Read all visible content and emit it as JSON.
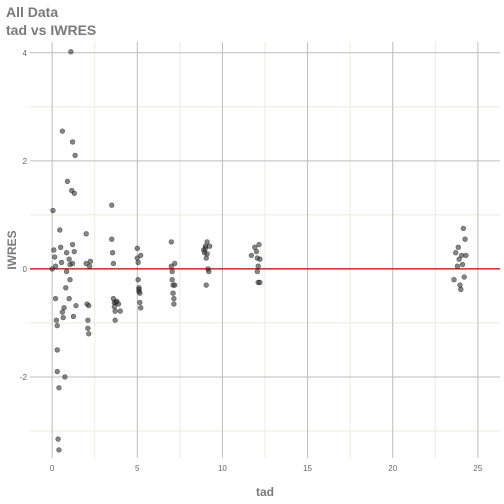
{
  "chart_data": {
    "type": "scatter",
    "title": "All Data",
    "subtitle": "tad vs IWRES",
    "xlabel": "tad",
    "ylabel": "IWRES",
    "xlim": [
      -1.3,
      26.3
    ],
    "ylim": [
      -3.5,
      4.2
    ],
    "x_ticks": [
      0,
      5,
      10,
      15,
      20,
      25
    ],
    "x_tick_labels": [
      "0",
      "5",
      "10",
      "15",
      "20",
      "25"
    ],
    "y_ticks": [
      -2,
      0,
      2,
      4
    ],
    "y_tick_labels": [
      "-2",
      "0",
      "2",
      "4"
    ],
    "x_minor_grid": [
      2.5,
      7.5,
      12.5,
      17.5,
      22.5
    ],
    "y_minor_grid": [
      -3,
      -1,
      1,
      3
    ],
    "grid": true,
    "reference_line": {
      "y": 0,
      "color": "#cc0000"
    },
    "colors": {
      "point": "#333333",
      "major_grid": "#bdbdbd",
      "minor_grid": "#ececdf",
      "text": "#7a7a7a"
    },
    "points": [
      {
        "x": 0.0,
        "y": 0.0
      },
      {
        "x": 0.05,
        "y": 1.08
      },
      {
        "x": 0.1,
        "y": 0.35
      },
      {
        "x": 0.15,
        "y": 0.22
      },
      {
        "x": 0.2,
        "y": 0.05
      },
      {
        "x": 0.2,
        "y": -0.55
      },
      {
        "x": 0.25,
        "y": -0.95
      },
      {
        "x": 0.3,
        "y": -1.05
      },
      {
        "x": 0.3,
        "y": -1.5
      },
      {
        "x": 0.3,
        "y": -1.9
      },
      {
        "x": 0.35,
        "y": -3.15
      },
      {
        "x": 0.4,
        "y": -3.35
      },
      {
        "x": 0.4,
        "y": -2.2
      },
      {
        "x": 0.45,
        "y": 0.72
      },
      {
        "x": 0.5,
        "y": 0.4
      },
      {
        "x": 0.55,
        "y": 0.12
      },
      {
        "x": 0.6,
        "y": -0.8
      },
      {
        "x": 0.6,
        "y": 2.55
      },
      {
        "x": 0.65,
        "y": -0.9
      },
      {
        "x": 0.7,
        "y": -0.72
      },
      {
        "x": 0.75,
        "y": -2.0
      },
      {
        "x": 0.8,
        "y": -0.35
      },
      {
        "x": 0.85,
        "y": -0.05
      },
      {
        "x": 0.85,
        "y": 0.3
      },
      {
        "x": 0.9,
        "y": 1.62
      },
      {
        "x": 1.0,
        "y": 0.18
      },
      {
        "x": 1.0,
        "y": -0.55
      },
      {
        "x": 1.05,
        "y": -0.2
      },
      {
        "x": 1.05,
        "y": 0.08
      },
      {
        "x": 1.1,
        "y": 4.02
      },
      {
        "x": 1.15,
        "y": 1.45
      },
      {
        "x": 1.2,
        "y": 0.45
      },
      {
        "x": 1.2,
        "y": 0.1
      },
      {
        "x": 1.2,
        "y": 2.35
      },
      {
        "x": 1.25,
        "y": -0.88
      },
      {
        "x": 1.3,
        "y": 1.4
      },
      {
        "x": 1.3,
        "y": 0.32
      },
      {
        "x": 1.35,
        "y": 2.1
      },
      {
        "x": 1.4,
        "y": -0.68
      },
      {
        "x": 2.0,
        "y": 0.65
      },
      {
        "x": 2.0,
        "y": 0.1
      },
      {
        "x": 2.05,
        "y": -0.65
      },
      {
        "x": 2.1,
        "y": -0.95
      },
      {
        "x": 2.1,
        "y": -1.1
      },
      {
        "x": 2.15,
        "y": -1.2
      },
      {
        "x": 2.15,
        "y": -0.68
      },
      {
        "x": 2.2,
        "y": 0.05
      },
      {
        "x": 2.25,
        "y": 0.14
      },
      {
        "x": 3.5,
        "y": 1.18
      },
      {
        "x": 3.5,
        "y": 0.55
      },
      {
        "x": 3.55,
        "y": 0.3
      },
      {
        "x": 3.6,
        "y": 0.1
      },
      {
        "x": 3.6,
        "y": -0.55
      },
      {
        "x": 3.65,
        "y": -0.62
      },
      {
        "x": 3.65,
        "y": -0.7
      },
      {
        "x": 3.7,
        "y": -0.78
      },
      {
        "x": 3.7,
        "y": -0.95
      },
      {
        "x": 3.75,
        "y": -0.62
      },
      {
        "x": 3.8,
        "y": -0.6
      },
      {
        "x": 3.9,
        "y": -0.65
      },
      {
        "x": 4.0,
        "y": -0.78
      },
      {
        "x": 5.0,
        "y": 0.38
      },
      {
        "x": 5.0,
        "y": 0.2
      },
      {
        "x": 5.05,
        "y": 0.12
      },
      {
        "x": 5.05,
        "y": -0.2
      },
      {
        "x": 5.1,
        "y": -0.35
      },
      {
        "x": 5.1,
        "y": -0.38
      },
      {
        "x": 5.1,
        "y": -0.42
      },
      {
        "x": 5.15,
        "y": -0.45
      },
      {
        "x": 5.15,
        "y": -0.62
      },
      {
        "x": 5.2,
        "y": -0.72
      },
      {
        "x": 5.2,
        "y": 0.25
      },
      {
        "x": 7.0,
        "y": 0.5
      },
      {
        "x": 7.0,
        "y": 0.05
      },
      {
        "x": 7.05,
        "y": -0.05
      },
      {
        "x": 7.05,
        "y": -0.2
      },
      {
        "x": 7.1,
        "y": -0.3
      },
      {
        "x": 7.1,
        "y": -0.45
      },
      {
        "x": 7.15,
        "y": -0.55
      },
      {
        "x": 7.15,
        "y": -0.65
      },
      {
        "x": 7.2,
        "y": -0.3
      },
      {
        "x": 7.2,
        "y": 0.1
      },
      {
        "x": 8.9,
        "y": 0.35
      },
      {
        "x": 8.95,
        "y": 0.3
      },
      {
        "x": 9.0,
        "y": 0.42
      },
      {
        "x": 9.0,
        "y": 0.38
      },
      {
        "x": 9.05,
        "y": 0.2
      },
      {
        "x": 9.05,
        "y": -0.3
      },
      {
        "x": 9.1,
        "y": 0.5
      },
      {
        "x": 9.1,
        "y": 0.28
      },
      {
        "x": 9.15,
        "y": 0.0
      },
      {
        "x": 9.2,
        "y": -0.05
      },
      {
        "x": 9.25,
        "y": 0.42
      },
      {
        "x": 11.7,
        "y": 0.25
      },
      {
        "x": 11.9,
        "y": 0.4
      },
      {
        "x": 12.0,
        "y": 0.32
      },
      {
        "x": 12.05,
        "y": 0.2
      },
      {
        "x": 12.05,
        "y": -0.05
      },
      {
        "x": 12.1,
        "y": -0.25
      },
      {
        "x": 12.1,
        "y": 0.05
      },
      {
        "x": 12.15,
        "y": 0.45
      },
      {
        "x": 12.2,
        "y": 0.18
      },
      {
        "x": 12.2,
        "y": -0.25
      },
      {
        "x": 23.6,
        "y": -0.2
      },
      {
        "x": 23.7,
        "y": 0.3
      },
      {
        "x": 23.8,
        "y": 0.05
      },
      {
        "x": 23.85,
        "y": 0.4
      },
      {
        "x": 23.9,
        "y": 0.18
      },
      {
        "x": 23.95,
        "y": -0.3
      },
      {
        "x": 24.0,
        "y": -0.38
      },
      {
        "x": 24.05,
        "y": 0.25
      },
      {
        "x": 24.1,
        "y": 0.08
      },
      {
        "x": 24.15,
        "y": 0.75
      },
      {
        "x": 24.2,
        "y": -0.15
      },
      {
        "x": 24.25,
        "y": 0.55
      },
      {
        "x": 24.3,
        "y": 0.25
      }
    ]
  }
}
